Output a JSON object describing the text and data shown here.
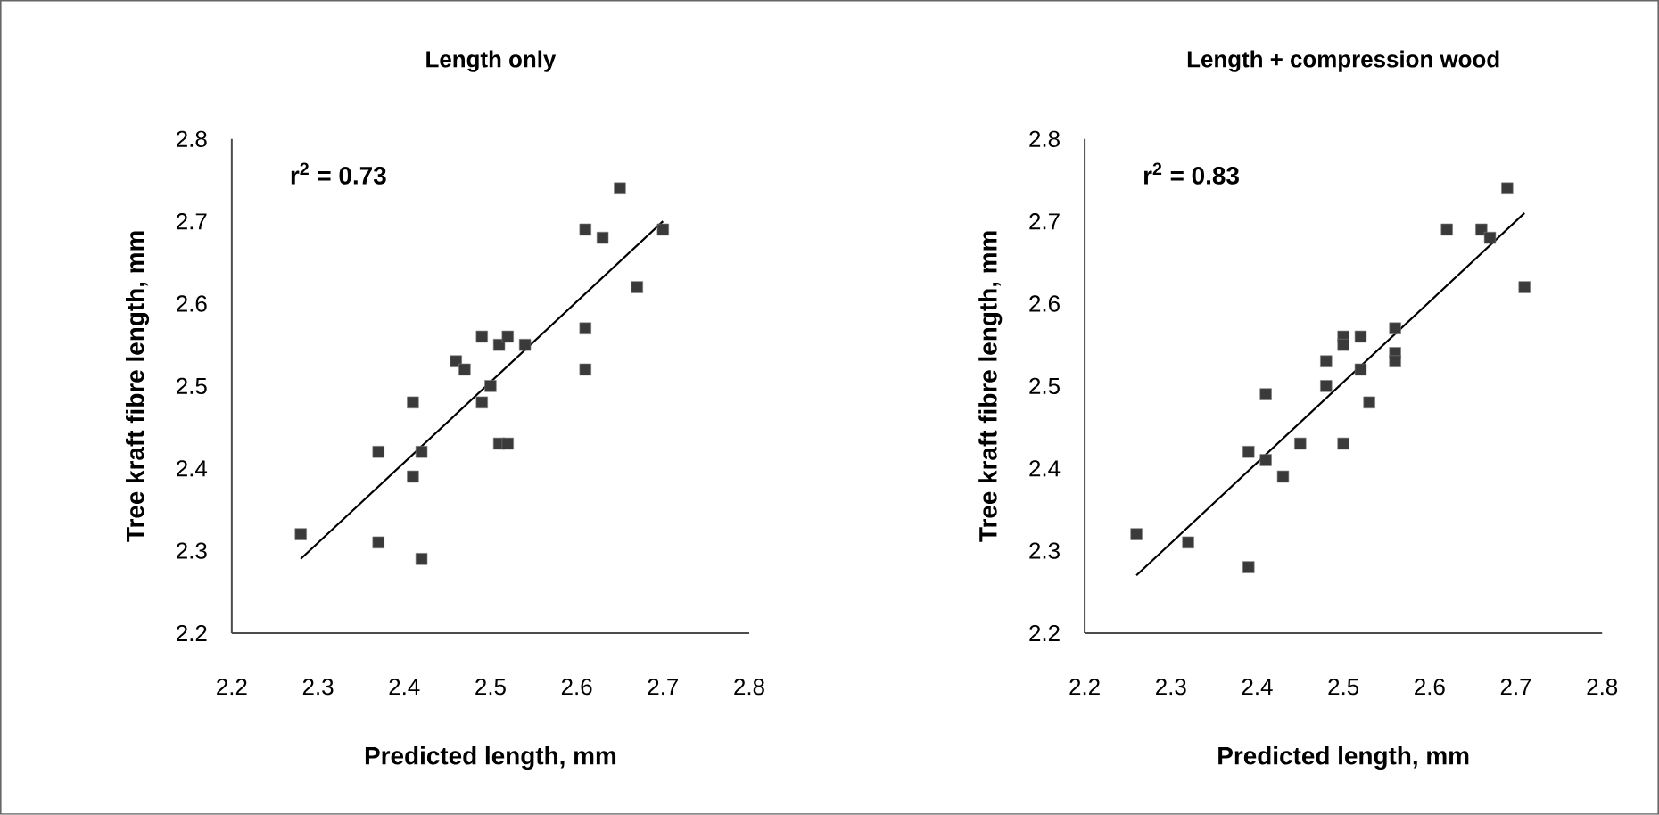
{
  "chart_data": [
    {
      "type": "scatter",
      "title": "Length only",
      "xlabel": "Predicted length, mm",
      "ylabel": "Tree kraft fibre length, mm",
      "annotations": [
        "r$^{2}$ = 0.73"
      ],
      "xlim": [
        2.2,
        2.8
      ],
      "ylim": [
        2.2,
        2.8
      ],
      "xticks": [
        2.2,
        2.3,
        2.4,
        2.5,
        2.6,
        2.7,
        2.8
      ],
      "yticks": [
        2.2,
        2.3,
        2.4,
        2.5,
        2.6,
        2.7,
        2.8
      ],
      "series": [
        {
          "marker": "square",
          "color": "#3a3a3a",
          "x": [
            2.28,
            2.37,
            2.42,
            2.37,
            2.41,
            2.41,
            2.42,
            2.46,
            2.47,
            2.49,
            2.51,
            2.52,
            2.54,
            2.5,
            2.49,
            2.51,
            2.52,
            2.61,
            2.61,
            2.61,
            2.63,
            2.65,
            2.67,
            2.7
          ],
          "values": [
            2.32,
            2.31,
            2.29,
            2.42,
            2.48,
            2.39,
            2.42,
            2.53,
            2.52,
            2.56,
            2.55,
            2.56,
            2.55,
            2.5,
            2.48,
            2.43,
            2.43,
            2.52,
            2.57,
            2.69,
            2.68,
            2.74,
            2.62,
            2.69
          ]
        },
        {
          "type": "line",
          "marker": "none",
          "color": "#000000",
          "x": [
            2.28,
            2.7
          ],
          "values": [
            2.29,
            2.7
          ]
        }
      ]
    },
    {
      "type": "scatter",
      "title": "Length + compression wood",
      "xlabel": "Predicted length, mm",
      "ylabel": "Tree kraft fibre length, mm",
      "annotations": [
        "r$^{2}$ = 0.83"
      ],
      "xlim": [
        2.2,
        2.8
      ],
      "ylim": [
        2.2,
        2.8
      ],
      "xticks": [
        2.2,
        2.3,
        2.4,
        2.5,
        2.6,
        2.7,
        2.8
      ],
      "yticks": [
        2.2,
        2.3,
        2.4,
        2.5,
        2.6,
        2.7,
        2.8
      ],
      "series": [
        {
          "marker": "square",
          "color": "#3a3a3a",
          "x": [
            2.26,
            2.32,
            2.39,
            2.39,
            2.41,
            2.41,
            2.43,
            2.45,
            2.48,
            2.48,
            2.5,
            2.5,
            2.52,
            2.52,
            2.53,
            2.5,
            2.56,
            2.56,
            2.56,
            2.62,
            2.66,
            2.67,
            2.69,
            2.71
          ],
          "values": [
            2.32,
            2.31,
            2.28,
            2.42,
            2.41,
            2.49,
            2.39,
            2.43,
            2.53,
            2.5,
            2.56,
            2.55,
            2.56,
            2.52,
            2.48,
            2.43,
            2.54,
            2.53,
            2.57,
            2.69,
            2.69,
            2.68,
            2.74,
            2.62
          ]
        },
        {
          "type": "line",
          "marker": "none",
          "color": "#000000",
          "x": [
            2.26,
            2.71
          ],
          "values": [
            2.27,
            2.71
          ]
        }
      ]
    }
  ]
}
